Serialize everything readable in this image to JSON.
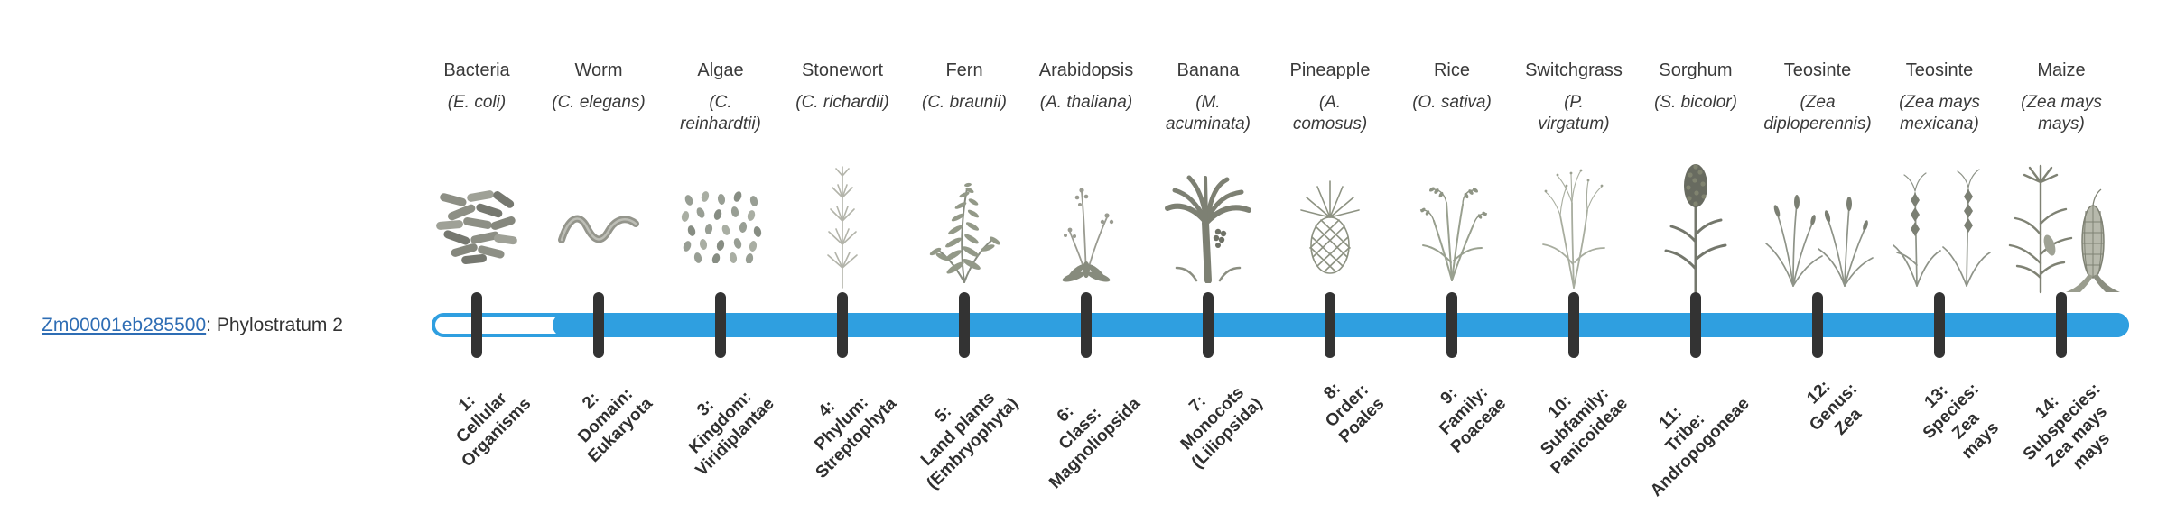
{
  "figure": {
    "gene_id": "Zm00001eb285500",
    "gene_suffix": ": Phylostratum 2",
    "phylostratum": 2
  },
  "colors": {
    "bar_fill": "#2f9fe0",
    "bar_track_border": "#2f9fe0",
    "tick": "#333333",
    "link": "#2e6db4",
    "text": "#333333"
  },
  "strata": [
    {
      "num": "1",
      "organism": "Bacteria",
      "species": "(E. coli)",
      "rank_label": "1:\nCellular\nOrganisms",
      "icon": "bacteria-icon"
    },
    {
      "num": "2",
      "organism": "Worm",
      "species": "(C. elegans)",
      "rank_label": "2:\nDomain:\nEukaryota",
      "icon": "worm-icon"
    },
    {
      "num": "3",
      "organism": "Algae",
      "species": "(C.\nreinhardtii)",
      "rank_label": "3:\nKingdom:\nViridiplantae",
      "icon": "algae-icon"
    },
    {
      "num": "4",
      "organism": "Stonewort",
      "species": "(C. richardii)",
      "rank_label": "4:\nPhylum:\nStreptophyta",
      "icon": "stonewort-icon"
    },
    {
      "num": "5",
      "organism": "Fern",
      "species": "(C. braunii)",
      "rank_label": "5:\nLand plants\n(Embryophyta)",
      "icon": "fern-icon"
    },
    {
      "num": "6",
      "organism": "Arabidopsis",
      "species": "(A. thaliana)",
      "rank_label": "6:\nClass:\nMagnoliopsida",
      "icon": "arabidopsis-icon"
    },
    {
      "num": "7",
      "organism": "Banana",
      "species": "(M.\nacuminata)",
      "rank_label": "7:\nMonocots\n(Liliopsida)",
      "icon": "banana-icon"
    },
    {
      "num": "8",
      "organism": "Pineapple",
      "species": "(A.\ncomosus)",
      "rank_label": "8:\nOrder:\nPoales",
      "icon": "pineapple-icon"
    },
    {
      "num": "9",
      "organism": "Rice",
      "species": "(O. sativa)",
      "rank_label": "9:\nFamily:\nPoaceae",
      "icon": "rice-icon"
    },
    {
      "num": "10",
      "organism": "Switchgrass",
      "species": "(P.\nvirgatum)",
      "rank_label": "10:\nSubfamily:\nPanicoideae",
      "icon": "switchgrass-icon"
    },
    {
      "num": "11",
      "organism": "Sorghum",
      "species": "(S. bicolor)",
      "rank_label": "11:\nTribe:\nAndropogoneae",
      "icon": "sorghum-icon"
    },
    {
      "num": "12",
      "organism": "Teosinte",
      "species": "(Zea\ndiploperennis)",
      "rank_label": "12:\nGenus:\nZea",
      "icon": "teosinte-diploperennis-icon"
    },
    {
      "num": "13",
      "organism": "Teosinte",
      "species": "(Zea mays\nmexicana)",
      "rank_label": "13:\nSpecies:\nZea\nmays",
      "icon": "teosinte-mexicana-icon"
    },
    {
      "num": "14",
      "organism": "Maize",
      "species": "(Zea mays\nmays)",
      "rank_label": "14:\nSubspecies:\nZea mays\nmays",
      "icon": "maize-icon"
    }
  ]
}
